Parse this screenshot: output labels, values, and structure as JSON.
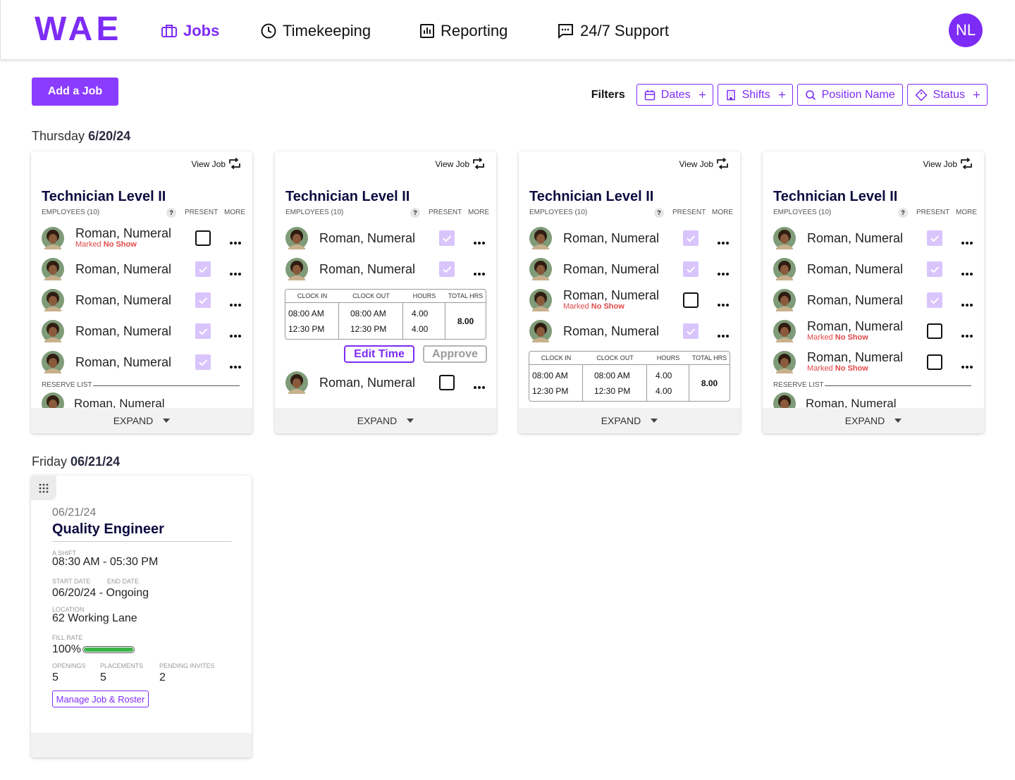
{
  "nav": {
    "logo": "WAE",
    "items": [
      "Jobs",
      "Timekeeping",
      "Reporting",
      "24/7 Support"
    ],
    "avatar": "NL"
  },
  "toolbar": {
    "add_button": "Add a Job",
    "filters_label": "Filters",
    "filters": [
      "Dates",
      "Shifts",
      "Position Name",
      "Status"
    ]
  },
  "days": [
    {
      "weekday": "Thursday",
      "date": "6/20/24",
      "cards": [
        {
          "view_job": "View Job",
          "title": "Technician Level II",
          "employees_label": "EMPLOYEES (10)",
          "help": "?",
          "present_label": "PRESENT",
          "more_label": "MORE",
          "expand": "EXPAND",
          "items": [
            {
              "name": "Roman, Numeral",
              "present": false,
              "status": {
                "prefix": "Marked",
                "label": "No Show"
              }
            },
            {
              "name": "Roman, Numeral",
              "present": true
            },
            {
              "name": "Roman, Numeral",
              "present": true
            },
            {
              "name": "Roman, Numeral",
              "present": true
            },
            {
              "name": "Roman, Numeral",
              "present": true
            },
            {
              "reserve_label": "RESERVE LIST",
              "reserve": [
                "Roman, Numeral"
              ]
            }
          ]
        },
        {
          "view_job": "View Job",
          "title": "Technician Level II",
          "employees_label": "EMPLOYEES (10)",
          "help": "?",
          "present_label": "PRESENT",
          "more_label": "MORE",
          "expand": "EXPAND",
          "items": [
            {
              "name": "Roman, Numeral",
              "present": true
            },
            {
              "name": "Roman, Numeral",
              "present": true
            },
            {
              "headers": [
                "CLOCK IN",
                "CLOCK OUT",
                "HOURS",
                "TOTAL HRS"
              ],
              "clock_in": [
                "08:00 AM",
                "12:30 PM"
              ],
              "clock_out": [
                "08:00 AM",
                "12:30 PM"
              ],
              "hours": [
                "4.00",
                "4.00"
              ],
              "total": "8.00"
            },
            {
              "edit": "Edit Time",
              "approve": "Approve"
            },
            {
              "name": "Roman, Numeral",
              "present": false
            }
          ]
        },
        {
          "view_job": "View Job",
          "title": "Technician Level II",
          "employees_label": "EMPLOYEES (10)",
          "help": "?",
          "present_label": "PRESENT",
          "more_label": "MORE",
          "expand": "EXPAND",
          "items": [
            {
              "name": "Roman, Numeral",
              "present": true
            },
            {
              "name": "Roman, Numeral",
              "present": true
            },
            {
              "name": "Roman, Numeral",
              "present": false,
              "status": {
                "prefix": "Marked",
                "label": "No Show"
              }
            },
            {
              "name": "Roman, Numeral",
              "present": true
            },
            {
              "headers": [
                "CLOCK IN",
                "CLOCK OUT",
                "HOURS",
                "TOTAL HRS"
              ],
              "clock_in": [
                "08:00 AM",
                "12:30 PM"
              ],
              "clock_out": [
                "08:00 AM",
                "12:30 PM"
              ],
              "hours": [
                "4.00",
                "4.00"
              ],
              "total": "8.00"
            }
          ]
        },
        {
          "view_job": "View Job",
          "title": "Technician Level II",
          "employees_label": "EMPLOYEES (10)",
          "help": "?",
          "present_label": "PRESENT",
          "more_label": "MORE",
          "expand": "EXPAND",
          "items": [
            {
              "name": "Roman, Numeral",
              "present": true
            },
            {
              "name": "Roman, Numeral",
              "present": true
            },
            {
              "name": "Roman, Numeral",
              "present": true
            },
            {
              "name": "Roman, Numeral",
              "present": false,
              "status": {
                "prefix": "Marked",
                "label": "No Show"
              }
            },
            {
              "name": "Roman, Numeral",
              "present": false,
              "status": {
                "prefix": "Marked",
                "label": "No Show"
              }
            },
            {
              "reserve_label": "RESERVE LIST",
              "reserve": [
                "Roman, Numeral"
              ]
            }
          ]
        }
      ]
    },
    {
      "weekday": "Friday",
      "date": "06/21/24",
      "job": {
        "date": "06/21/24",
        "title": "Quality Engineer",
        "shift_label": "A SHIFT",
        "shift": "08:30 AM - 05:30 PM",
        "start_label": "START DATE",
        "end_label": "END DATE",
        "dates": "06/20/24 - Ongoing",
        "location_label": "LOCATION",
        "location": "62 Working Lane",
        "fill_label": "FILL RATE",
        "fill_rate": {
          "value": 100,
          "label": "100%"
        },
        "stats": [
          {
            "label": "OPENINGS",
            "value": 5
          },
          {
            "label": "PLACEMENTS",
            "value": 5
          },
          {
            "label": "PENDING INVITES",
            "value": 2
          }
        ],
        "button": "Manage Job & Roster"
      }
    }
  ]
}
